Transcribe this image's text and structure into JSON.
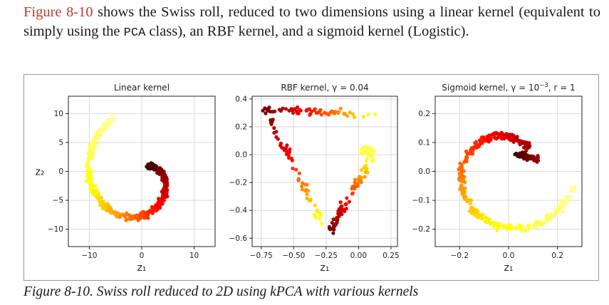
{
  "paragraph": {
    "fig_ref": "Figure 8-10",
    "part1": " shows the Swiss roll, reduced to two dimensions using a linear kernel (equivalent to simply using the ",
    "code": "PCA",
    "part2": " class), an RBF kernel, and a sigmoid kernel (Logistic)."
  },
  "caption": "Figure 8-10. Swiss roll reduced to 2D using kPCA with various kernels",
  "chart_data": [
    {
      "type": "scatter",
      "title": "Linear kernel",
      "xlabel": "z₁",
      "ylabel": "z₂",
      "xlim": [
        -14,
        14
      ],
      "ylim": [
        -13,
        13
      ],
      "xticks": [
        -10,
        0,
        10
      ],
      "xtick_labels": [
        "−10",
        "0",
        "10"
      ],
      "yticks": [
        -10,
        -5,
        0,
        5,
        10
      ],
      "ytick_labels": [
        "−10",
        "−5",
        "0",
        "5",
        "10"
      ],
      "grid": true,
      "colormap": "hot"
    },
    {
      "type": "scatter",
      "title": "RBF kernel, γ = 0.04",
      "xlabel": "z₁",
      "ylabel": "",
      "xlim": [
        -0.82,
        0.3
      ],
      "ylim": [
        -0.66,
        0.42
      ],
      "xticks": [
        -0.75,
        -0.5,
        -0.25,
        0.0,
        0.25
      ],
      "xtick_labels": [
        "−0.75",
        "−0.50",
        "−0.25",
        "0.00",
        "0.25"
      ],
      "yticks": [
        -0.6,
        -0.4,
        -0.2,
        0.0,
        0.2,
        0.4
      ],
      "ytick_labels": [
        "−0.6",
        "−0.4",
        "−0.2",
        "0.0",
        "0.2",
        "0.4"
      ],
      "grid": true,
      "colormap": "hot"
    },
    {
      "type": "scatter",
      "title_base": "Sigmoid kernel, γ = 10",
      "title_exp": "−3",
      "title_tail": ", r = 1",
      "xlabel": "z₁",
      "ylabel": "",
      "xlim": [
        -0.3,
        0.3
      ],
      "ylim": [
        -0.26,
        0.26
      ],
      "xticks": [
        -0.2,
        0.0,
        0.2
      ],
      "xtick_labels": [
        "−0.2",
        "0.0",
        "0.2"
      ],
      "yticks": [
        -0.2,
        -0.1,
        0.0,
        0.1,
        0.2
      ],
      "ytick_labels": [
        "−0.2",
        "−0.1",
        "0.0",
        "0.1",
        "0.2"
      ],
      "grid": true,
      "colormap": "hot"
    }
  ]
}
